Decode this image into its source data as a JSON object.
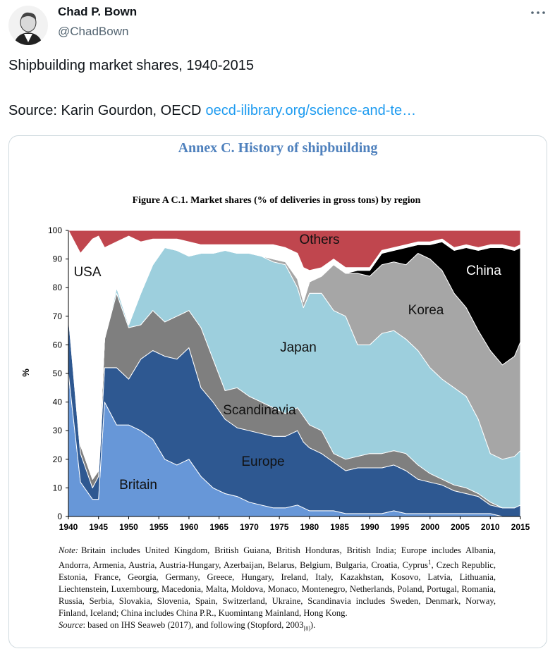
{
  "tweet": {
    "name": "Chad P. Bown",
    "handle": "@ChadBown",
    "text": "Shipbuilding market shares, 1940-2015",
    "source_prefix": "Source: Karin Gourdon, OECD",
    "link": "oecd-ilibrary.org/science-and-te…"
  },
  "figure": {
    "heading": "Annex C. History of shipbuilding",
    "note_label": "Note:",
    "note_text_1": "Britain includes United Kingdom, British Guiana, British Honduras, British India; Europe includes Albania, Andorra, Armenia, Austria, Austria-Hungary, Azerbaijan, Belarus, Belgium, Bulgaria, Croatia, Cyprus",
    "note_sup": "1",
    "note_text_2": ", Czech Republic, Estonia, France, Georgia, Germany, Greece, Hungary, Ireland, Italy, Kazakhstan, Kosovo, Latvia, Lithuania, Liechtenstein, Luxembourg, Macedonia, Malta, Moldova, Monaco, Montenegro, Netherlands, Poland, Portugal, Romania, Russia, Serbia, Slovakia, Slovenia, Spain, Switzerland, Ukraine, Scandinavia includes Sweden, Denmark, Norway, Finland, Iceland; China includes China P.R., Kuomintang Mainland, Hong Kong.",
    "source_label": "Source",
    "source_text": ": based on IHS Seaweb (2017), and following (Stopford, 2003",
    "source_sub": "[8]",
    "source_end": ")."
  },
  "chart_data": {
    "type": "stacked_area",
    "title": "Figure A C.1. Market shares (% of deliveries in gross tons) by region",
    "y_label": "%",
    "x": [
      1940,
      1942,
      1944,
      1945,
      1946,
      1948,
      1950,
      1952,
      1954,
      1956,
      1958,
      1960,
      1962,
      1964,
      1966,
      1968,
      1970,
      1972,
      1974,
      1976,
      1978,
      1979,
      1980,
      1982,
      1984,
      1986,
      1988,
      1990,
      1992,
      1994,
      1996,
      1998,
      2000,
      2002,
      2004,
      2006,
      2008,
      2010,
      2012,
      2014,
      2015
    ],
    "series": [
      {
        "name": "Britain",
        "color": "#6797d8",
        "values": [
          50,
          12,
          6,
          6,
          40,
          32,
          32,
          30,
          27,
          20,
          18,
          20,
          14,
          10,
          8,
          7,
          5,
          4,
          3,
          3,
          4,
          3,
          2,
          2,
          2,
          1,
          1,
          1,
          1,
          2,
          1,
          1,
          1,
          1,
          1,
          1,
          1,
          1,
          0,
          0,
          0
        ]
      },
      {
        "name": "Europe",
        "color": "#2e5891",
        "values": [
          20,
          10,
          4,
          8,
          12,
          20,
          16,
          25,
          31,
          36,
          37,
          39,
          31,
          30,
          26,
          24,
          25,
          25,
          25,
          25,
          26,
          23,
          22,
          20,
          17,
          15,
          16,
          16,
          16,
          16,
          15,
          12,
          11,
          10,
          8,
          7,
          6,
          3,
          3,
          3,
          4
        ]
      },
      {
        "name": "Scandinavia",
        "color": "#7f7f7f",
        "values": [
          2,
          3,
          3,
          2,
          10,
          26,
          18,
          12,
          14,
          12,
          15,
          13,
          21,
          15,
          10,
          14,
          12,
          11,
          10,
          8,
          8,
          9,
          8,
          8,
          3,
          4,
          4,
          5,
          5,
          5,
          6,
          5,
          3,
          2,
          2,
          2,
          1,
          1,
          0,
          0,
          0
        ]
      },
      {
        "name": "Japan",
        "color": "#9dcfdd",
        "values": [
          0,
          0,
          0,
          0,
          0,
          2,
          1,
          11,
          16,
          26,
          23,
          19,
          26,
          37,
          49,
          47,
          50,
          51,
          51,
          52,
          42,
          38,
          46,
          48,
          50,
          50,
          39,
          38,
          42,
          42,
          40,
          40,
          37,
          35,
          34,
          32,
          26,
          17,
          17,
          18,
          19
        ]
      },
      {
        "name": "Korea",
        "color": "#a6a6a6",
        "values": [
          0,
          0,
          0,
          0,
          0,
          0,
          0,
          0,
          0,
          0,
          0,
          0,
          0,
          0,
          0,
          0,
          0,
          0,
          1,
          1,
          3,
          2,
          4,
          6,
          16,
          15,
          25,
          24,
          24,
          24,
          26,
          34,
          38,
          38,
          33,
          31,
          31,
          36,
          33,
          35,
          38
        ]
      },
      {
        "name": "China",
        "color": "#000000",
        "values": [
          0,
          0,
          0,
          0,
          0,
          0,
          0,
          0,
          0,
          0,
          0,
          0,
          0,
          0,
          0,
          0,
          0,
          0,
          0,
          0,
          0,
          0,
          0,
          0,
          0,
          0,
          1,
          2,
          4,
          4,
          6,
          3,
          5,
          10,
          15,
          21,
          28,
          36,
          41,
          37,
          33
        ]
      },
      {
        "name": "USA",
        "color": "#ffffff",
        "values": [
          28,
          67,
          84,
          82,
          32,
          16,
          31,
          18,
          9,
          3,
          4,
          5,
          3,
          3,
          2,
          3,
          3,
          4,
          5,
          5,
          9,
          12,
          4,
          3,
          2,
          2,
          1,
          1,
          1,
          1,
          1,
          1,
          1,
          1,
          1,
          1,
          1,
          1,
          1,
          1,
          1
        ]
      },
      {
        "name": "Others",
        "color": "#c0464e",
        "values": [
          0,
          8,
          3,
          2,
          6,
          4,
          2,
          4,
          3,
          3,
          3,
          4,
          5,
          5,
          5,
          5,
          5,
          5,
          5,
          6,
          8,
          13,
          14,
          13,
          10,
          13,
          13,
          13,
          7,
          6,
          5,
          4,
          4,
          3,
          6,
          5,
          6,
          5,
          5,
          6,
          5
        ]
      }
    ],
    "xlim": [
      1940,
      2015
    ],
    "ylim": [
      0,
      100
    ],
    "xticks": [
      1940,
      1945,
      1950,
      1955,
      1960,
      1965,
      1970,
      1975,
      1980,
      1985,
      1990,
      1995,
      2000,
      2005,
      2010,
      2015
    ],
    "yticks": [
      0,
      10,
      20,
      30,
      40,
      50,
      60,
      70,
      80,
      90,
      100
    ],
    "stacked": true,
    "grid": false
  }
}
